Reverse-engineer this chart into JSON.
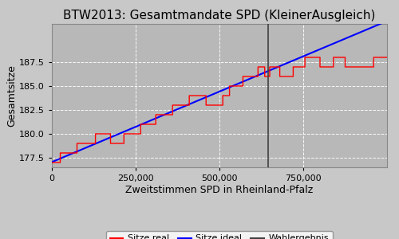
{
  "title": "BTW2013: Gesamtmandate SPD (KleinerAusgleich)",
  "xlabel": "Zweitstimmen SPD in Rheinland-Pfalz",
  "ylabel": "Gesamtsitze",
  "bg_color": "#c8c8c8",
  "plot_bg_color": "#b8b8b8",
  "ideal_line_start_x": 0,
  "ideal_line_start_y": 177.05,
  "ideal_line_end_x": 1000000,
  "ideal_line_end_y": 191.8,
  "wahlergebnis_x": 645000,
  "xlim": [
    0,
    1000000
  ],
  "ylim": [
    176.5,
    191.5
  ],
  "yticks": [
    177.5,
    180.0,
    182.5,
    185.0,
    187.5
  ],
  "xticks": [
    0,
    250000,
    500000,
    750000
  ],
  "step_x": [
    0,
    25000,
    25001,
    75000,
    75001,
    130000,
    130001,
    175000,
    175001,
    215000,
    215001,
    265000,
    265001,
    310000,
    310001,
    360000,
    360001,
    410000,
    410001,
    460000,
    460001,
    510000,
    510001,
    530000,
    530001,
    570000,
    570001,
    615000,
    615001,
    635000,
    635001,
    650000,
    650001,
    680000,
    680001,
    720000,
    720001,
    755000,
    755001,
    800000,
    800001,
    840000,
    840001,
    875000,
    875001,
    960000,
    960001,
    1000000
  ],
  "step_y": [
    177.0,
    177.0,
    178.0,
    178.0,
    179.0,
    179.0,
    180.0,
    180.0,
    179.0,
    179.0,
    180.0,
    180.0,
    181.0,
    181.0,
    182.0,
    182.0,
    183.0,
    183.0,
    184.0,
    184.0,
    183.0,
    183.0,
    184.0,
    184.0,
    185.0,
    185.0,
    186.0,
    186.0,
    187.0,
    187.0,
    186.0,
    186.0,
    187.0,
    187.0,
    186.0,
    186.0,
    187.0,
    187.0,
    188.0,
    188.0,
    187.0,
    187.0,
    188.0,
    188.0,
    187.0,
    187.0,
    188.0,
    188.0
  ],
  "legend_labels": [
    "Sitze real",
    "Sitze ideal",
    "Wahlergebnis"
  ],
  "legend_colors": [
    "red",
    "blue",
    "#404040"
  ],
  "grid_color": "white",
  "grid_linestyle": "--",
  "title_fontsize": 11,
  "axis_fontsize": 9,
  "tick_fontsize": 8,
  "legend_fontsize": 8
}
